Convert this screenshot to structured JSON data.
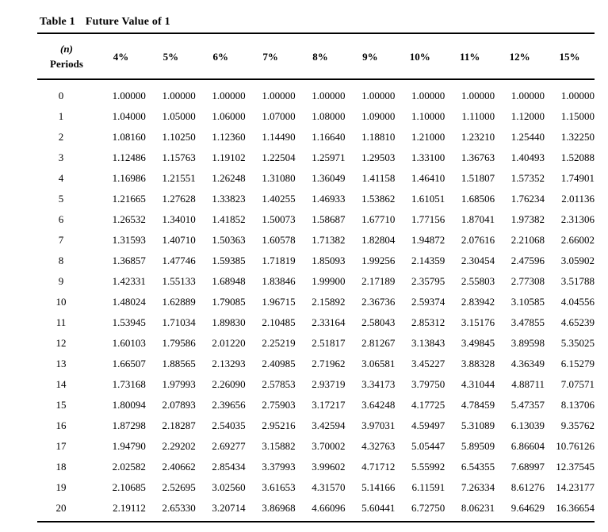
{
  "page": {
    "background_color": "#ffffff",
    "text_color": "#000000",
    "rule_color": "#000000"
  },
  "table": {
    "title_label": "Table 1",
    "title_caption": "Future Value of 1",
    "row_header": {
      "line1": "(n)",
      "line2": "Periods"
    },
    "column_headers": [
      "4%",
      "5%",
      "6%",
      "7%",
      "8%",
      "9%",
      "10%",
      "11%",
      "12%",
      "15%"
    ],
    "rows": [
      {
        "period": "0",
        "values": [
          "1.00000",
          "1.00000",
          "1.00000",
          "1.00000",
          "1.00000",
          "1.00000",
          "1.00000",
          "1.00000",
          "1.00000",
          "1.00000"
        ]
      },
      {
        "period": "1",
        "values": [
          "1.04000",
          "1.05000",
          "1.06000",
          "1.07000",
          "1.08000",
          "1.09000",
          "1.10000",
          "1.11000",
          "1.12000",
          "1.15000"
        ]
      },
      {
        "period": "2",
        "values": [
          "1.08160",
          "1.10250",
          "1.12360",
          "1.14490",
          "1.16640",
          "1.18810",
          "1.21000",
          "1.23210",
          "1.25440",
          "1.32250"
        ]
      },
      {
        "period": "3",
        "values": [
          "1.12486",
          "1.15763",
          "1.19102",
          "1.22504",
          "1.25971",
          "1.29503",
          "1.33100",
          "1.36763",
          "1.40493",
          "1.52088"
        ]
      },
      {
        "period": "4",
        "values": [
          "1.16986",
          "1.21551",
          "1.26248",
          "1.31080",
          "1.36049",
          "1.41158",
          "1.46410",
          "1.51807",
          "1.57352",
          "1.74901"
        ]
      },
      {
        "period": "5",
        "values": [
          "1.21665",
          "1.27628",
          "1.33823",
          "1.40255",
          "1.46933",
          "1.53862",
          "1.61051",
          "1.68506",
          "1.76234",
          "2.01136"
        ]
      },
      {
        "period": "6",
        "values": [
          "1.26532",
          "1.34010",
          "1.41852",
          "1.50073",
          "1.58687",
          "1.67710",
          "1.77156",
          "1.87041",
          "1.97382",
          "2.31306"
        ]
      },
      {
        "period": "7",
        "values": [
          "1.31593",
          "1.40710",
          "1.50363",
          "1.60578",
          "1.71382",
          "1.82804",
          "1.94872",
          "2.07616",
          "2.21068",
          "2.66002"
        ]
      },
      {
        "period": "8",
        "values": [
          "1.36857",
          "1.47746",
          "1.59385",
          "1.71819",
          "1.85093",
          "1.99256",
          "2.14359",
          "2.30454",
          "2.47596",
          "3.05902"
        ]
      },
      {
        "period": "9",
        "values": [
          "1.42331",
          "1.55133",
          "1.68948",
          "1.83846",
          "1.99900",
          "2.17189",
          "2.35795",
          "2.55803",
          "2.77308",
          "3.51788"
        ]
      },
      {
        "period": "10",
        "values": [
          "1.48024",
          "1.62889",
          "1.79085",
          "1.96715",
          "2.15892",
          "2.36736",
          "2.59374",
          "2.83942",
          "3.10585",
          "4.04556"
        ]
      },
      {
        "period": "11",
        "values": [
          "1.53945",
          "1.71034",
          "1.89830",
          "2.10485",
          "2.33164",
          "2.58043",
          "2.85312",
          "3.15176",
          "3.47855",
          "4.65239"
        ]
      },
      {
        "period": "12",
        "values": [
          "1.60103",
          "1.79586",
          "2.01220",
          "2.25219",
          "2.51817",
          "2.81267",
          "3.13843",
          "3.49845",
          "3.89598",
          "5.35025"
        ]
      },
      {
        "period": "13",
        "values": [
          "1.66507",
          "1.88565",
          "2.13293",
          "2.40985",
          "2.71962",
          "3.06581",
          "3.45227",
          "3.88328",
          "4.36349",
          "6.15279"
        ]
      },
      {
        "period": "14",
        "values": [
          "1.73168",
          "1.97993",
          "2.26090",
          "2.57853",
          "2.93719",
          "3.34173",
          "3.79750",
          "4.31044",
          "4.88711",
          "7.07571"
        ]
      },
      {
        "period": "15",
        "values": [
          "1.80094",
          "2.07893",
          "2.39656",
          "2.75903",
          "3.17217",
          "3.64248",
          "4.17725",
          "4.78459",
          "5.47357",
          "8.13706"
        ]
      },
      {
        "period": "16",
        "values": [
          "1.87298",
          "2.18287",
          "2.54035",
          "2.95216",
          "3.42594",
          "3.97031",
          "4.59497",
          "5.31089",
          "6.13039",
          "9.35762"
        ]
      },
      {
        "period": "17",
        "values": [
          "1.94790",
          "2.29202",
          "2.69277",
          "3.15882",
          "3.70002",
          "4.32763",
          "5.05447",
          "5.89509",
          "6.86604",
          "10.76126"
        ]
      },
      {
        "period": "18",
        "values": [
          "2.02582",
          "2.40662",
          "2.85434",
          "3.37993",
          "3.99602",
          "4.71712",
          "5.55992",
          "6.54355",
          "7.68997",
          "12.37545"
        ]
      },
      {
        "period": "19",
        "values": [
          "2.10685",
          "2.52695",
          "3.02560",
          "3.61653",
          "4.31570",
          "5.14166",
          "6.11591",
          "7.26334",
          "8.61276",
          "14.23177"
        ]
      },
      {
        "period": "20",
        "values": [
          "2.19112",
          "2.65330",
          "3.20714",
          "3.86968",
          "4.66096",
          "5.60441",
          "6.72750",
          "8.06231",
          "9.64629",
          "16.36654"
        ]
      }
    ]
  }
}
